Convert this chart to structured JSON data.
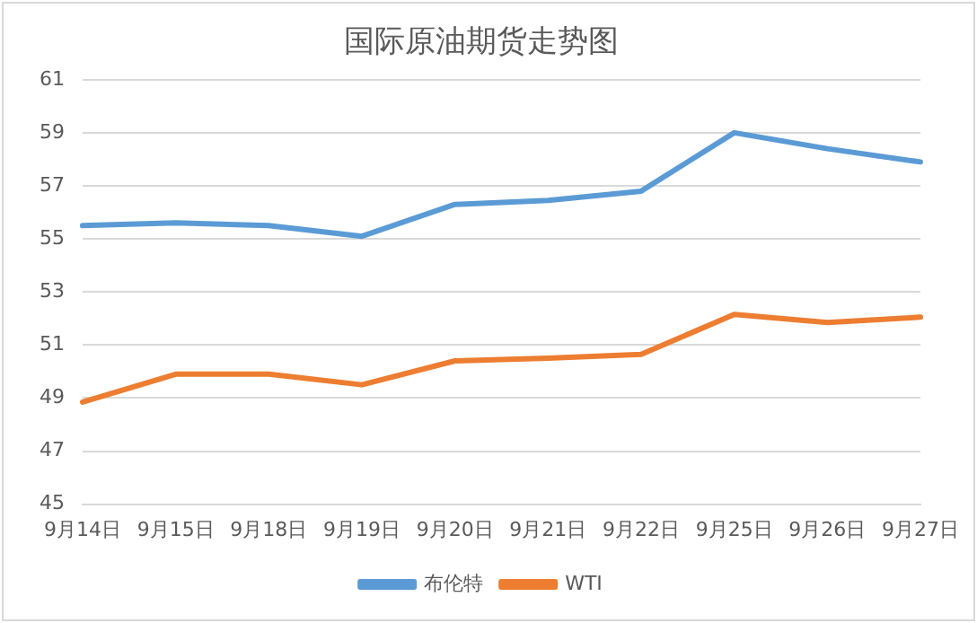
{
  "chart_data": {
    "type": "line",
    "title": "国际原油期货走势图",
    "categories": [
      "9月14日",
      "9月15日",
      "9月18日",
      "9月19日",
      "9月20日",
      "9月21日",
      "9月22日",
      "9月25日",
      "9月26日",
      "9月27日"
    ],
    "series": [
      {
        "name": "布伦特",
        "color": "#5b9bd5",
        "values": [
          55.5,
          55.6,
          55.5,
          55.1,
          56.3,
          56.45,
          56.8,
          59.0,
          58.4,
          57.9
        ]
      },
      {
        "name": "WTI",
        "color": "#ed7d31",
        "values": [
          48.85,
          49.9,
          49.9,
          49.5,
          50.4,
          50.5,
          50.65,
          52.15,
          51.85,
          52.05
        ]
      }
    ],
    "ylim": [
      45,
      61
    ],
    "yticks": [
      45,
      47,
      49,
      51,
      53,
      55,
      57,
      59,
      61
    ],
    "grid": "y",
    "legend": "bottom",
    "marker": "none",
    "line_style": "solid"
  }
}
